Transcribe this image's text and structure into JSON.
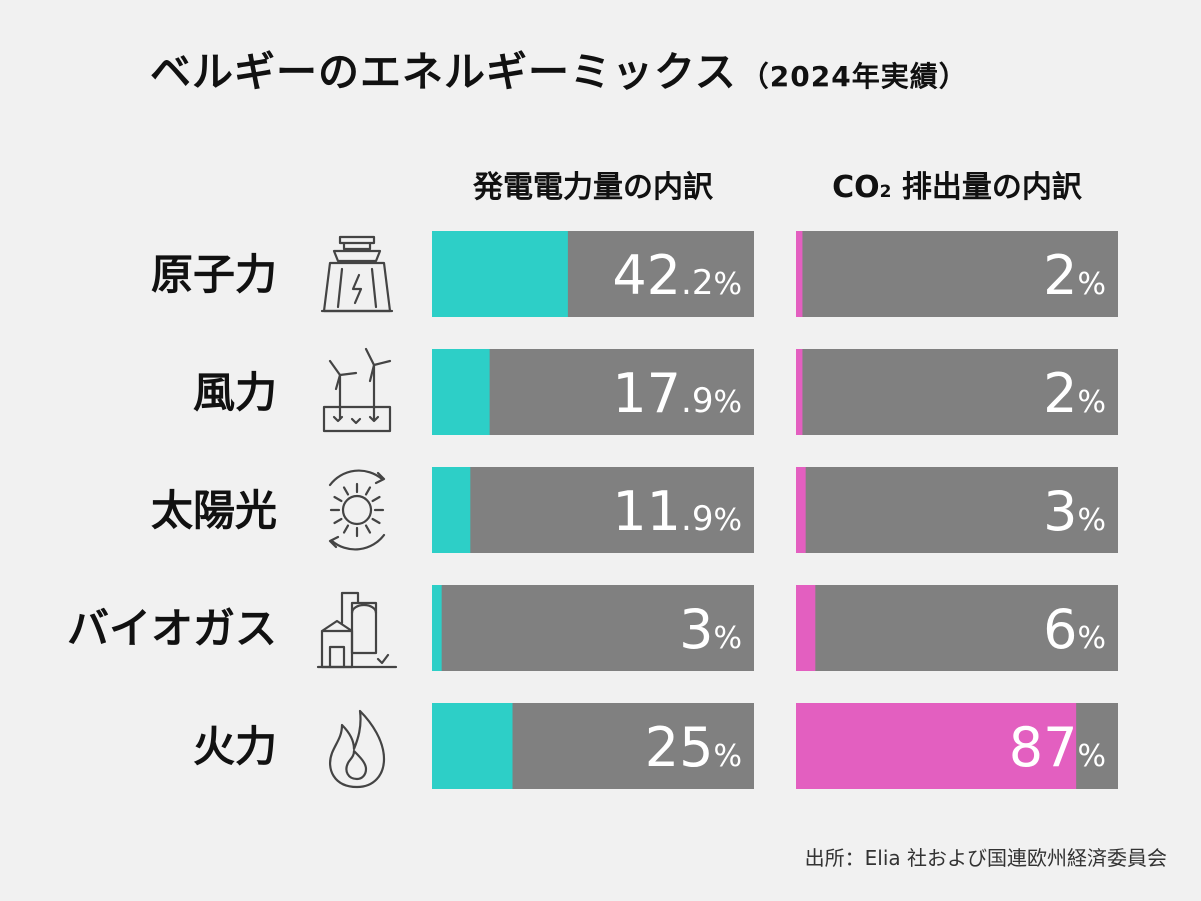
{
  "title": "ベルギーのエネルギーミックス",
  "title_note": "（2024年実績）",
  "columns": {
    "generation_label": "発電電力量の内訳",
    "co2_label_prefix": "CO",
    "co2_label_sub": "2",
    "co2_label_suffix": " 排出量の内訳"
  },
  "source": "出所：Elia 社および国連欧州経済委員会",
  "colors": {
    "background": "#f1f1f1",
    "bar_track": "#808080",
    "generation": "#2dcfc7",
    "co2": "#e35fc0",
    "value_text": "#ffffff"
  },
  "chart_data": {
    "type": "bar",
    "orientation": "horizontal",
    "categories": [
      "原子力",
      "風力",
      "太陽光",
      "バイオガス",
      "火力"
    ],
    "icons": [
      "nuclear-plant-icon",
      "wind-turbine-icon",
      "solar-icon",
      "biogas-plant-icon",
      "flame-icon"
    ],
    "series": [
      {
        "name": "発電電力量の内訳",
        "values": [
          42.2,
          17.9,
          11.9,
          3,
          25
        ],
        "labels_int": [
          "42",
          "17",
          "11",
          "3",
          "25"
        ],
        "labels_dec": [
          ".2",
          ".9",
          ".9",
          "",
          ""
        ],
        "unit": "%"
      },
      {
        "name": "CO2 排出量の内訳",
        "values": [
          2,
          2,
          3,
          6,
          87
        ],
        "labels_int": [
          "2",
          "2",
          "3",
          "6",
          "87"
        ],
        "labels_dec": [
          "",
          "",
          "",
          "",
          ""
        ],
        "unit": "%"
      }
    ],
    "xlim": [
      0,
      100
    ]
  }
}
